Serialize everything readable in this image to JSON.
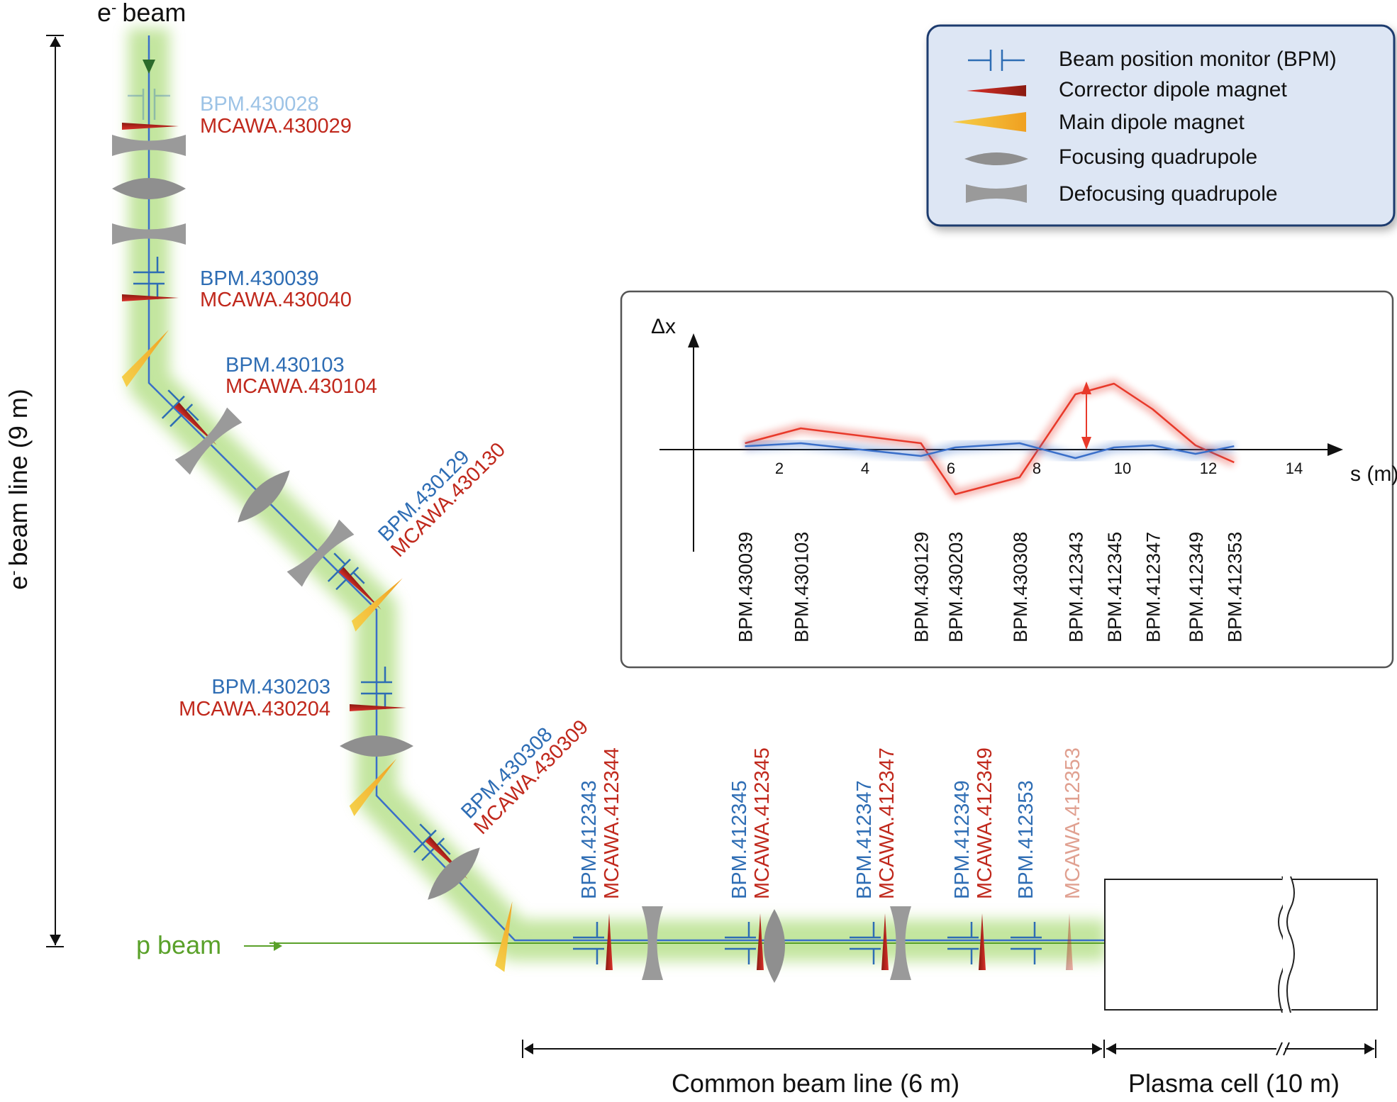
{
  "labels": {
    "e_beam": "e",
    "e_beam_suffix": "beam",
    "e_beamline": "beam line (9 m)",
    "e_beamline_prefix": "e",
    "p_beam": "p beam",
    "common_beamline": "Common beam line (6 m)",
    "plasma_cell": "Plasma cell (10 m)"
  },
  "legend": {
    "items": [
      {
        "icon": "bpm-icon",
        "label": "Beam position monitor (BPM)"
      },
      {
        "icon": "corrector-dipole-icon",
        "label": "Corrector dipole magnet"
      },
      {
        "icon": "main-dipole-icon",
        "label": "Main dipole magnet"
      },
      {
        "icon": "focusing-quadrupole-icon",
        "label": "Focusing quadrupole"
      },
      {
        "icon": "defocusing-quadrupole-icon",
        "label": "Defocusing quadrupole"
      }
    ]
  },
  "element_labels": {
    "bpm430028": "BPM.430028",
    "mcawa430029": "MCAWA.430029",
    "bpm430039": "BPM.430039",
    "mcawa430040": "MCAWA.430040",
    "bpm430103": "BPM.430103",
    "mcawa430104": "MCAWA.430104",
    "bpm430129": "BPM.430129",
    "mcawa430130": "MCAWA.430130",
    "bpm430203": "BPM.430203",
    "mcawa430204": "MCAWA.430204",
    "bpm430308": "BPM.430308",
    "mcawa430309": "MCAWA.430309",
    "bpm412343": "BPM.412343",
    "mcawa412344": "MCAWA.412344",
    "bpm412345": "BPM.412345",
    "mcawa412345": "MCAWA.412345",
    "bpm412347": "BPM.412347",
    "mcawa412347": "MCAWA.412347",
    "bpm412349": "BPM.412349",
    "mcawa412349": "MCAWA.412349",
    "bpm412353": "BPM.412353",
    "mcawa412353": "MCAWA.412353"
  },
  "colors": {
    "bpm": "#2e6db4",
    "corrector": "#c0281c",
    "dipole": "#f5b82e",
    "quad": "#8f8f8f",
    "glow": "#92d050",
    "faded_bpm": "#9dc3e6",
    "faded_corrector": "#e0a090",
    "red_trace": "#e8392a",
    "blue_trace": "#3a6fc9"
  },
  "chart_data": {
    "type": "line",
    "ylabel": "Δx",
    "xlabel": "s (m)",
    "x_ticks": [
      "2",
      "4",
      "6",
      "8",
      "10",
      "12",
      "14"
    ],
    "bpm_labels": [
      "BPM.430039",
      "BPM.430103",
      "BPM.430129",
      "BPM.430203",
      "BPM.430308",
      "BPM.412343",
      "BPM.412345",
      "BPM.412347",
      "BPM.412349",
      "BPM.412353"
    ],
    "series": [
      {
        "color": "#e8392a",
        "x": [
          1.2,
          2.5,
          5.3,
          6.1,
          7.6,
          8.9,
          9.8,
          10.7,
          11.7,
          12.6
        ],
        "y": [
          0.15,
          0.5,
          0.15,
          -1.05,
          -0.65,
          1.3,
          1.55,
          0.95,
          0.1,
          -0.3
        ]
      },
      {
        "color": "#3a6fc9",
        "x": [
          1.2,
          2.5,
          5.3,
          6.1,
          7.6,
          8.9,
          9.8,
          10.7,
          11.7,
          12.6
        ],
        "y": [
          0.08,
          0.15,
          -0.15,
          0.05,
          0.15,
          -0.2,
          0.05,
          0.1,
          -0.1,
          0.08
        ]
      }
    ]
  }
}
